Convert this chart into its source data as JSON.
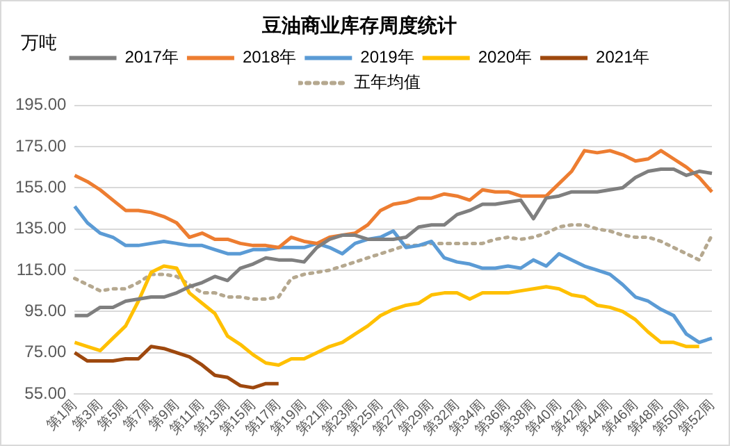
{
  "chart_data": {
    "type": "line",
    "title": "豆油商业库存周度统计",
    "ylabel": "万吨",
    "categories": [
      "第1周",
      null,
      "第3周",
      null,
      "第5周",
      null,
      "第7周",
      null,
      "第9周",
      null,
      "第11周",
      null,
      "第13周",
      null,
      "第15周",
      null,
      "第17周",
      null,
      "第19周",
      null,
      "第21周",
      null,
      "第23周",
      null,
      "第25周",
      null,
      "第27周",
      null,
      "第29周",
      null,
      "第32周",
      null,
      "第34周",
      null,
      "第36周",
      null,
      "第38周",
      null,
      "第40周",
      null,
      "第42周",
      null,
      "第44周",
      null,
      "第46周",
      null,
      "第48周",
      null,
      "第50周",
      null,
      "第52周"
    ],
    "ylim": [
      55,
      195
    ],
    "yticks": [
      {
        "value": 55,
        "label": "55.00"
      },
      {
        "value": 75,
        "label": "75.00"
      },
      {
        "value": 95,
        "label": "95.00"
      },
      {
        "value": 115,
        "label": "115.00"
      },
      {
        "value": 135,
        "label": "135.00"
      },
      {
        "value": 155,
        "label": "155.00"
      },
      {
        "value": 175,
        "label": "175.00"
      },
      {
        "value": 195,
        "label": "195.00"
      }
    ],
    "grid": "y",
    "legend": "top",
    "marker": "none",
    "line_style": "solid",
    "series": [
      {
        "name": "2017年",
        "color": "#7f7f7f",
        "values": [
          93,
          93,
          97,
          97,
          100,
          101,
          102,
          102,
          104,
          107,
          109,
          112,
          110,
          116,
          118,
          121,
          120,
          120,
          119,
          126,
          130,
          132,
          132,
          130,
          130,
          130,
          131,
          136,
          137,
          137,
          142,
          144,
          147,
          147,
          148,
          149,
          140,
          150,
          151,
          153,
          153,
          153,
          154,
          155,
          160,
          163,
          164,
          164,
          161,
          163,
          162
        ]
      },
      {
        "name": "2018年",
        "color": "#ed7d31",
        "values": [
          161,
          158,
          154,
          149,
          144,
          144,
          143,
          141,
          138,
          131,
          133,
          130,
          130,
          128,
          127,
          127,
          126,
          131,
          129,
          128,
          131,
          132,
          133,
          137,
          144,
          147,
          148,
          150,
          150,
          152,
          151,
          149,
          154,
          153,
          153,
          151,
          151,
          151,
          157,
          163,
          173,
          172,
          173,
          171,
          168,
          169,
          173,
          169,
          165,
          160,
          153
        ]
      },
      {
        "name": "2019年",
        "color": "#5b9bd5",
        "values": [
          146,
          138,
          133,
          131,
          127,
          127,
          128,
          129,
          128,
          127,
          127,
          125,
          123,
          123,
          125,
          125,
          126,
          126,
          126,
          128,
          126,
          123,
          128,
          130,
          131,
          134,
          126,
          127,
          129,
          121,
          119,
          118,
          116,
          116,
          117,
          116,
          120,
          117,
          123,
          120,
          117,
          115,
          113,
          108,
          102,
          100,
          96,
          93,
          84,
          80,
          82
        ]
      },
      {
        "name": "2020年",
        "color": "#ffc000",
        "values": [
          80,
          78,
          76,
          82,
          88,
          100,
          114,
          117,
          116,
          104,
          99,
          94,
          83,
          79,
          74,
          70,
          69,
          72,
          72,
          75,
          78,
          80,
          84,
          88,
          93,
          96,
          98,
          99,
          103,
          104,
          104,
          101,
          104,
          104,
          104,
          105,
          106,
          107,
          106,
          103,
          102,
          98,
          97,
          95,
          91,
          85,
          80,
          80,
          78,
          78,
          null
        ]
      },
      {
        "name": "2021年",
        "color": "#9e480e",
        "values": [
          75,
          71,
          71,
          71,
          72,
          72,
          78,
          77,
          75,
          73,
          69,
          64,
          63,
          59,
          58,
          60,
          60,
          null,
          null,
          null,
          null,
          null,
          null,
          null,
          null,
          null,
          null,
          null,
          null,
          null,
          null,
          null,
          null,
          null,
          null,
          null,
          null,
          null,
          null,
          null,
          null,
          null,
          null,
          null,
          null,
          null,
          null,
          null,
          null,
          null,
          null
        ]
      },
      {
        "name": "五年均值",
        "color": "#b5a88f",
        "line_style": "dotted",
        "values": [
          111,
          108,
          105,
          106,
          106,
          109,
          113,
          113,
          112,
          108,
          104,
          104,
          102,
          102,
          101,
          101,
          102,
          111,
          113,
          114,
          115,
          117,
          119,
          121,
          123,
          125,
          127,
          127,
          128,
          128,
          128,
          128,
          128,
          130,
          131,
          130,
          131,
          133,
          136,
          137,
          137,
          135,
          134,
          132,
          131,
          131,
          129,
          126,
          123,
          120,
          132
        ]
      }
    ]
  }
}
